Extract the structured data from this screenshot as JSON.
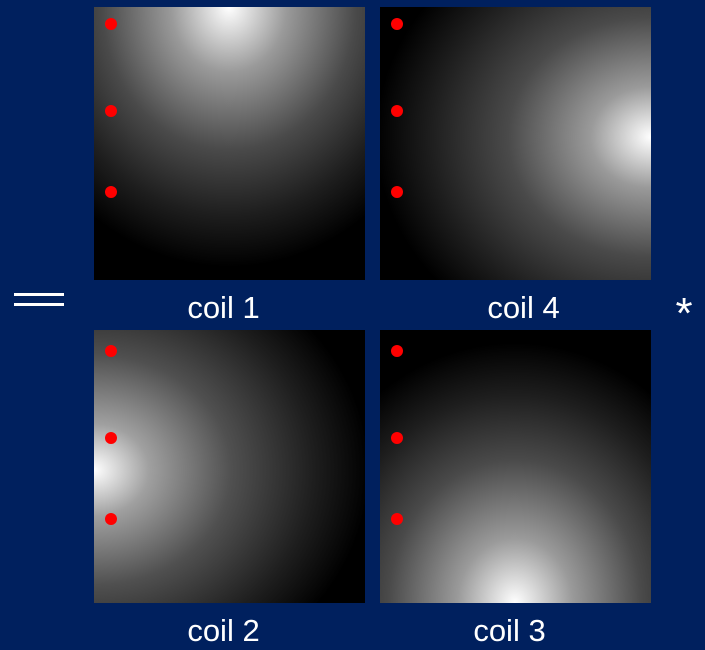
{
  "operators": {
    "equals": "=",
    "multiply": "*"
  },
  "panels": [
    {
      "label": "coil 1"
    },
    {
      "label": "coil 4"
    },
    {
      "label": "coil 2"
    },
    {
      "label": "coil 3"
    }
  ],
  "colors": {
    "background": "#00205e",
    "marker": "#ff0000",
    "text": "#ffffff"
  }
}
